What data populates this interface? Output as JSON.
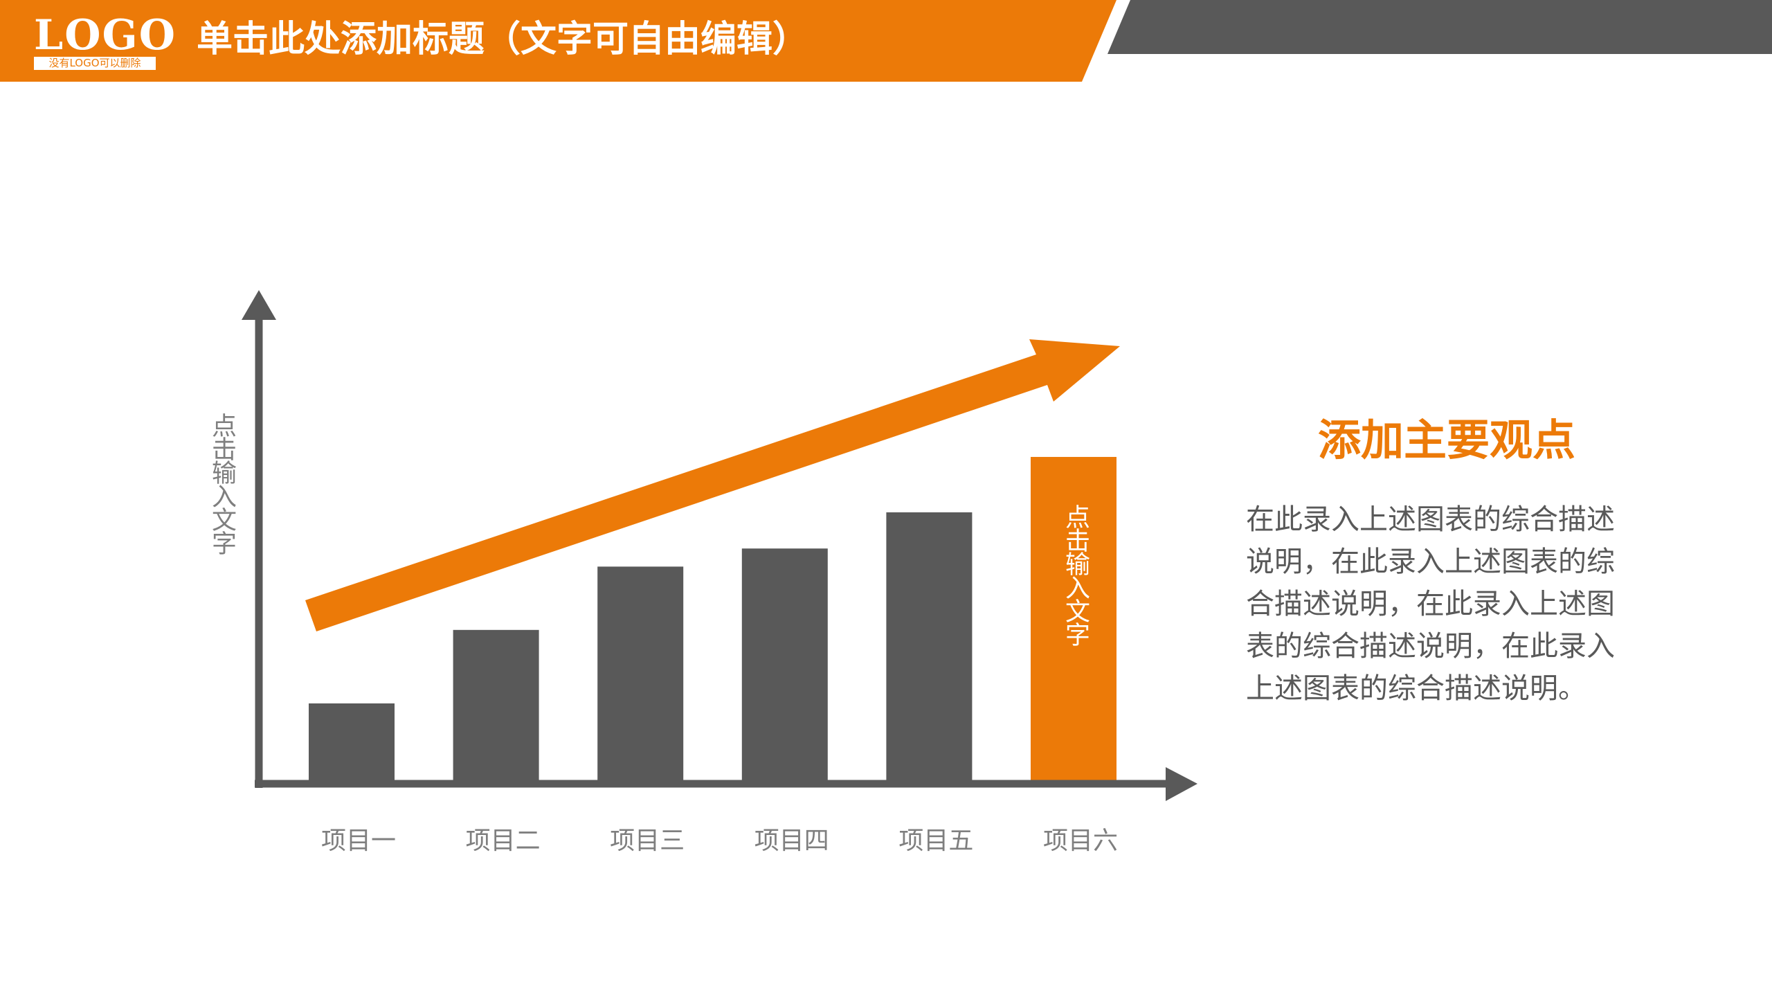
{
  "header": {
    "logo_text": "LOGO",
    "logo_subtext": "没有LOGO可以删除",
    "title": "单击此处添加标题（文字可自由编辑）"
  },
  "colors": {
    "accent": "#EC7A08",
    "dark": "#595959"
  },
  "chart_data": {
    "type": "bar",
    "categories": [
      "项目一",
      "项目二",
      "项目三",
      "项目四",
      "项目五",
      "项目六"
    ],
    "values": [
      68,
      133,
      189,
      205,
      237,
      286
    ],
    "ylabel": "点击输入文字",
    "highlight_index": 5,
    "highlight_label": "点击输入文字",
    "trend_arrow": true,
    "grid": false
  },
  "side": {
    "heading": "添加主要观点",
    "paragraph": "在此录入上述图表的综合描述说明，在此录入上述图表的综合描述说明，在此录入上述图表的综合描述说明，在此录入上述图表的综合描述说明。"
  }
}
